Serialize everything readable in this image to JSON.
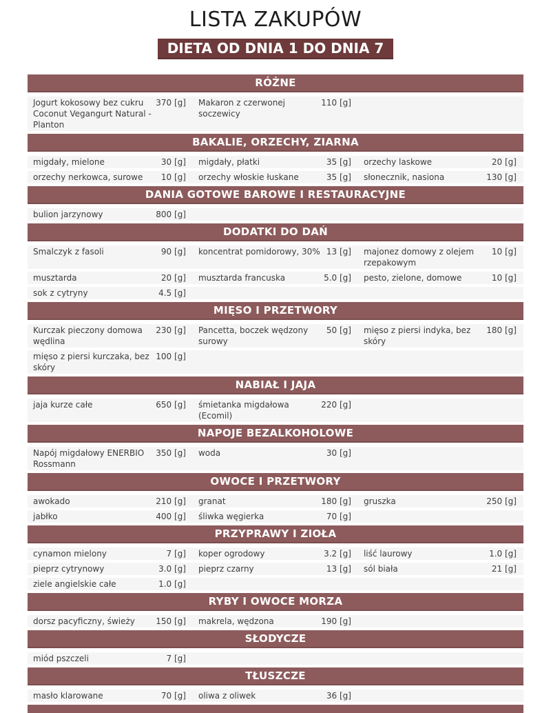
{
  "header": {
    "title": "LISTA ZAKUPÓW",
    "subtitle": "DIETA OD DNIA 1 DO DNIA 7"
  },
  "colors": {
    "section_band": "#8d5b5c",
    "section_band_edge": "#7b4d4e",
    "banner": "#6e3a3b",
    "row_background": "#f6f5f5",
    "title_text": "#1c1c1c",
    "item_text": "#3d3d3d"
  },
  "unit": "[g]",
  "sections": [
    {
      "title": "RÓŻNE",
      "items": [
        {
          "name": "Jogurt kokosowy bez cukru Coconut Vegangurt Natural - Planton",
          "qty": "370 [g]"
        },
        {
          "name": "Makaron z czerwonej soczewicy",
          "qty": "110 [g]"
        }
      ]
    },
    {
      "title": "BAKALIE, ORZECHY, ZIARNA",
      "items": [
        {
          "name": "migdały, mielone",
          "qty": "30 [g]"
        },
        {
          "name": "migdały, płatki",
          "qty": "35 [g]"
        },
        {
          "name": "orzechy laskowe",
          "qty": "20 [g]"
        },
        {
          "name": "orzechy nerkowca, surowe",
          "qty": "10 [g]"
        },
        {
          "name": "orzechy włoskie łuskane",
          "qty": "35 [g]"
        },
        {
          "name": "słonecznik, nasiona",
          "qty": "130 [g]"
        }
      ]
    },
    {
      "title": "DANIA GOTOWE BAROWE I RESTAURACYJNE",
      "items": [
        {
          "name": "bulion jarzynowy",
          "qty": "800 [g]"
        }
      ]
    },
    {
      "title": "DODATKI DO DAŃ",
      "items": [
        {
          "name": "Smalczyk z fasoli",
          "qty": "90 [g]"
        },
        {
          "name": "koncentrat pomidorowy, 30%",
          "qty": "13 [g]"
        },
        {
          "name": "majonez domowy z olejem rzepakowym",
          "qty": "10 [g]"
        },
        {
          "name": "musztarda",
          "qty": "20 [g]"
        },
        {
          "name": "musztarda francuska",
          "qty": "5.0 [g]"
        },
        {
          "name": "pesto, zielone, domowe",
          "qty": "10 [g]"
        },
        {
          "name": "sok z cytryny",
          "qty": "4.5 [g]"
        }
      ]
    },
    {
      "title": "MIĘSO I PRZETWORY",
      "items": [
        {
          "name": "Kurczak pieczony domowa wędlina",
          "qty": "230 [g]"
        },
        {
          "name": "Pancetta, boczek wędzony surowy",
          "qty": "50 [g]"
        },
        {
          "name": "mięso z piersi indyka, bez skóry",
          "qty": "180 [g]"
        },
        {
          "name": "mięso z piersi kurczaka, bez skóry",
          "qty": "100 [g]"
        }
      ]
    },
    {
      "title": "NABIAŁ I JAJA",
      "items": [
        {
          "name": "jaja kurze całe",
          "qty": "650 [g]"
        },
        {
          "name": "śmietanka migdałowa (Ecomil)",
          "qty": "220 [g]"
        }
      ]
    },
    {
      "title": "NAPOJE BEZALKOHOLOWE",
      "items": [
        {
          "name": "Napój migdałowy ENERBIO Rossmann",
          "qty": "350 [g]"
        },
        {
          "name": "woda",
          "qty": "30 [g]"
        }
      ]
    },
    {
      "title": "OWOCE I PRZETWORY",
      "items": [
        {
          "name": "awokado",
          "qty": "210 [g]"
        },
        {
          "name": "granat",
          "qty": "180 [g]"
        },
        {
          "name": "gruszka",
          "qty": "250 [g]"
        },
        {
          "name": "jabłko",
          "qty": "400 [g]"
        },
        {
          "name": "śliwka węgierka",
          "qty": "70 [g]"
        }
      ]
    },
    {
      "title": "PRZYPRAWY I ZIOŁA",
      "items": [
        {
          "name": "cynamon mielony",
          "qty": "7 [g]"
        },
        {
          "name": "koper ogrodowy",
          "qty": "3.2 [g]"
        },
        {
          "name": "liść laurowy",
          "qty": "1.0 [g]"
        },
        {
          "name": "pieprz cytrynowy",
          "qty": "3.0 [g]"
        },
        {
          "name": "pieprz czarny",
          "qty": "13 [g]"
        },
        {
          "name": "sól biała",
          "qty": "21 [g]"
        },
        {
          "name": "ziele angielskie całe",
          "qty": "1.0 [g]"
        }
      ]
    },
    {
      "title": "RYBY I OWOCE MORZA",
      "items": [
        {
          "name": "dorsz pacyficzny, świeży",
          "qty": "150 [g]"
        },
        {
          "name": "makrela, wędzona",
          "qty": "190 [g]"
        }
      ]
    },
    {
      "title": "SŁODYCZE",
      "items": [
        {
          "name": "miód pszczeli",
          "qty": "7 [g]"
        }
      ]
    },
    {
      "title": "TŁUSZCZE",
      "items": [
        {
          "name": "masło klarowane",
          "qty": "70 [g]"
        },
        {
          "name": "oliwa z oliwek",
          "qty": "36 [g]"
        }
      ]
    }
  ]
}
